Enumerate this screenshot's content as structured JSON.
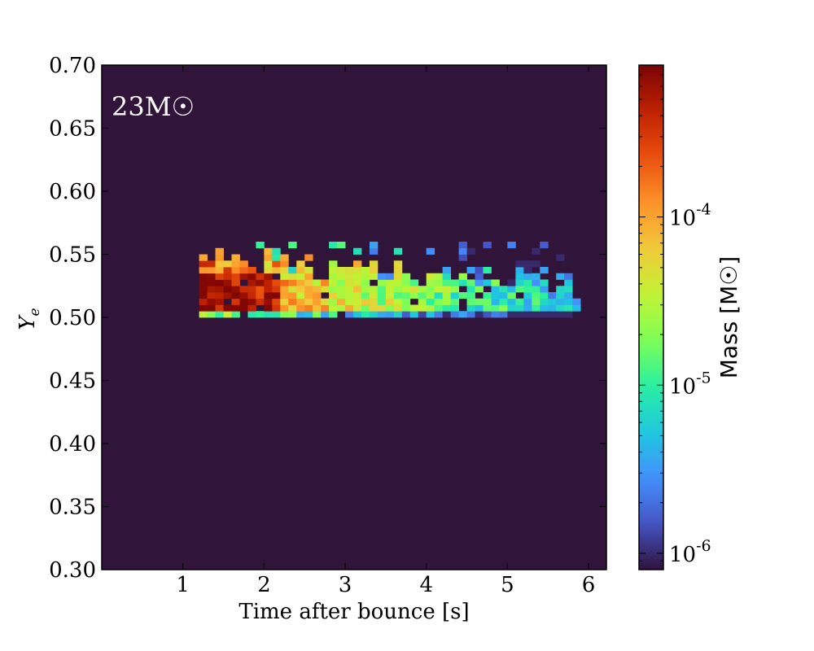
{
  "chart_data": {
    "type": "heatmap",
    "annotation": "23M☉",
    "xlabel": "Time after bounce [s]",
    "ylabel": "Ye",
    "colorbar_label": "Mass [M☉]",
    "xlim": [
      0,
      6.22
    ],
    "ylim": [
      0.3,
      0.7
    ],
    "xticks": [
      1,
      2,
      3,
      4,
      5,
      6
    ],
    "yticks": [
      "0.30",
      "0.35",
      "0.40",
      "0.45",
      "0.50",
      "0.55",
      "0.60",
      "0.65",
      "0.70"
    ],
    "colorbar_ticks": [
      {
        "base": "10",
        "exp": "-6",
        "value": 1e-06
      },
      {
        "base": "10",
        "exp": "-5",
        "value": 1e-05
      },
      {
        "base": "10",
        "exp": "-4",
        "value": 0.0001
      }
    ],
    "color_scale": "log",
    "color_range": [
      8e-07,
      0.0008
    ],
    "background_color": "#30143a",
    "colormap": [
      "#30123b",
      "#4454c4",
      "#4490fe",
      "#1fc8de",
      "#29efa2",
      "#7eff55",
      "#c1f334",
      "#f1ca3a",
      "#fe922a",
      "#ea4f0d",
      "#be2102",
      "#7a0403"
    ],
    "bin_width_s": 0.1,
    "bin_height": 0.005,
    "ye_band": [
      0.5,
      0.56
    ],
    "time_band": [
      1.2,
      5.85
    ],
    "peak_region": {
      "time": [
        1.2,
        2.2
      ],
      "ye": [
        0.505,
        0.53
      ]
    }
  }
}
